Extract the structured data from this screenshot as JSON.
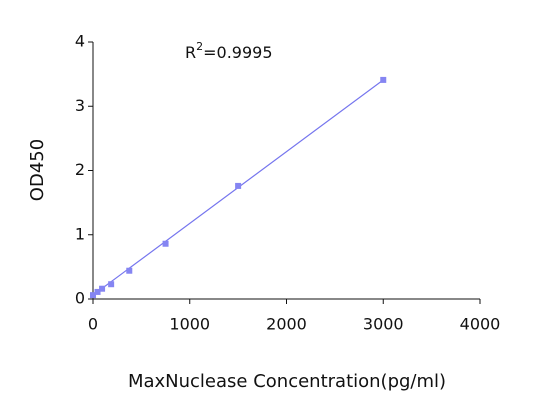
{
  "chart_data": {
    "type": "scatter",
    "x_label": "MaxNuclease Concentration(pg/ml)",
    "y_label": "OD450",
    "annotation": [
      "R",
      "2",
      "=0.9995"
    ],
    "series": [
      {
        "color": "#8585f2",
        "x": [
          0,
          46.875,
          93.75,
          187.5,
          375,
          750,
          1500,
          3000
        ],
        "values": [
          0.06,
          0.11,
          0.16,
          0.23,
          0.44,
          0.86,
          1.76,
          3.41
        ]
      }
    ],
    "fit_line": {
      "color": "#7575ee",
      "x": [
        0,
        3000
      ],
      "values": [
        0.06,
        3.41
      ]
    },
    "xlim": [
      0,
      4000
    ],
    "xticks": [
      0,
      1000,
      2000,
      3000,
      4000
    ],
    "ylim": [
      0,
      4
    ],
    "yticks": [
      0,
      1,
      2,
      3,
      4
    ]
  }
}
